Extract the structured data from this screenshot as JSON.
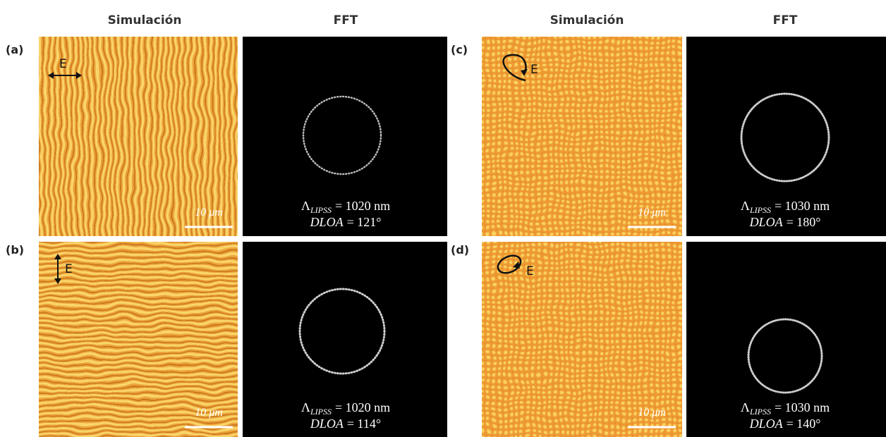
{
  "headers": [
    "Simulación",
    "FFT",
    "Simulación",
    "FFT"
  ],
  "panels": [
    {
      "label": "(a)",
      "field": "E",
      "scale_bar": "10 μm",
      "lambda_symbol": "Λ",
      "lambda_subscript": "LIPSS",
      "lambda_value": "= 1020 nm",
      "dloa_name": "DLOA",
      "dloa_value": "= 121°"
    },
    {
      "label": "(b)",
      "field": "E",
      "scale_bar": "10 μm",
      "lambda_symbol": "Λ",
      "lambda_subscript": "LIPSS",
      "lambda_value": "= 1020 nm",
      "dloa_name": "DLOA",
      "dloa_value": "= 114°"
    },
    {
      "label": "(c)",
      "field": "E",
      "scale_bar": "10 μm",
      "lambda_symbol": "Λ",
      "lambda_subscript": "LIPSS",
      "lambda_value": "= 1030 nm",
      "dloa_name": "DLOA",
      "dloa_value": "= 180°"
    },
    {
      "label": "(d)",
      "field": "E",
      "scale_bar": "10 μm",
      "lambda_symbol": "Λ",
      "lambda_subscript": "LIPSS",
      "lambda_value": "= 1030 nm",
      "dloa_name": "DLOA",
      "dloa_value": "= 140°"
    }
  ]
}
